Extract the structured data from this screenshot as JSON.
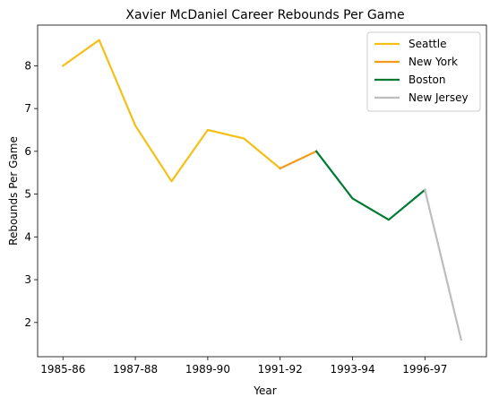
{
  "chart_data": {
    "type": "line",
    "title": "Xavier McDaniel Career Rebounds Per Game",
    "xlabel": "Year",
    "ylabel": "Rebounds Per Game",
    "xlim": [
      -0.7,
      11.7
    ],
    "ylim": [
      1.2,
      8.95
    ],
    "xticks": [
      {
        "pos": 0,
        "label": "1985-86"
      },
      {
        "pos": 2,
        "label": "1987-88"
      },
      {
        "pos": 4,
        "label": "1989-90"
      },
      {
        "pos": 6,
        "label": "1991-92"
      },
      {
        "pos": 8,
        "label": "1993-94"
      },
      {
        "pos": 10,
        "label": "1996-97"
      }
    ],
    "yticks": [
      2,
      3,
      4,
      5,
      6,
      7,
      8
    ],
    "legend_position": "top-right",
    "grid": false,
    "series": [
      {
        "name": "Seattle",
        "color": "#f5bf17",
        "x": [
          0,
          1,
          2,
          3,
          4,
          5,
          6
        ],
        "y": [
          8.0,
          8.6,
          6.6,
          5.3,
          6.5,
          6.3,
          5.6
        ]
      },
      {
        "name": "New York",
        "color": "#f39c1b",
        "x": [
          6,
          7
        ],
        "y": [
          5.6,
          6.0
        ]
      },
      {
        "name": "Boston",
        "color": "#007a33",
        "x": [
          7,
          8,
          9,
          10
        ],
        "y": [
          6.0,
          4.9,
          4.4,
          5.1
        ]
      },
      {
        "name": "New Jersey",
        "color": "#bdbdbd",
        "x": [
          10,
          11
        ],
        "y": [
          5.1,
          1.6
        ]
      }
    ]
  }
}
